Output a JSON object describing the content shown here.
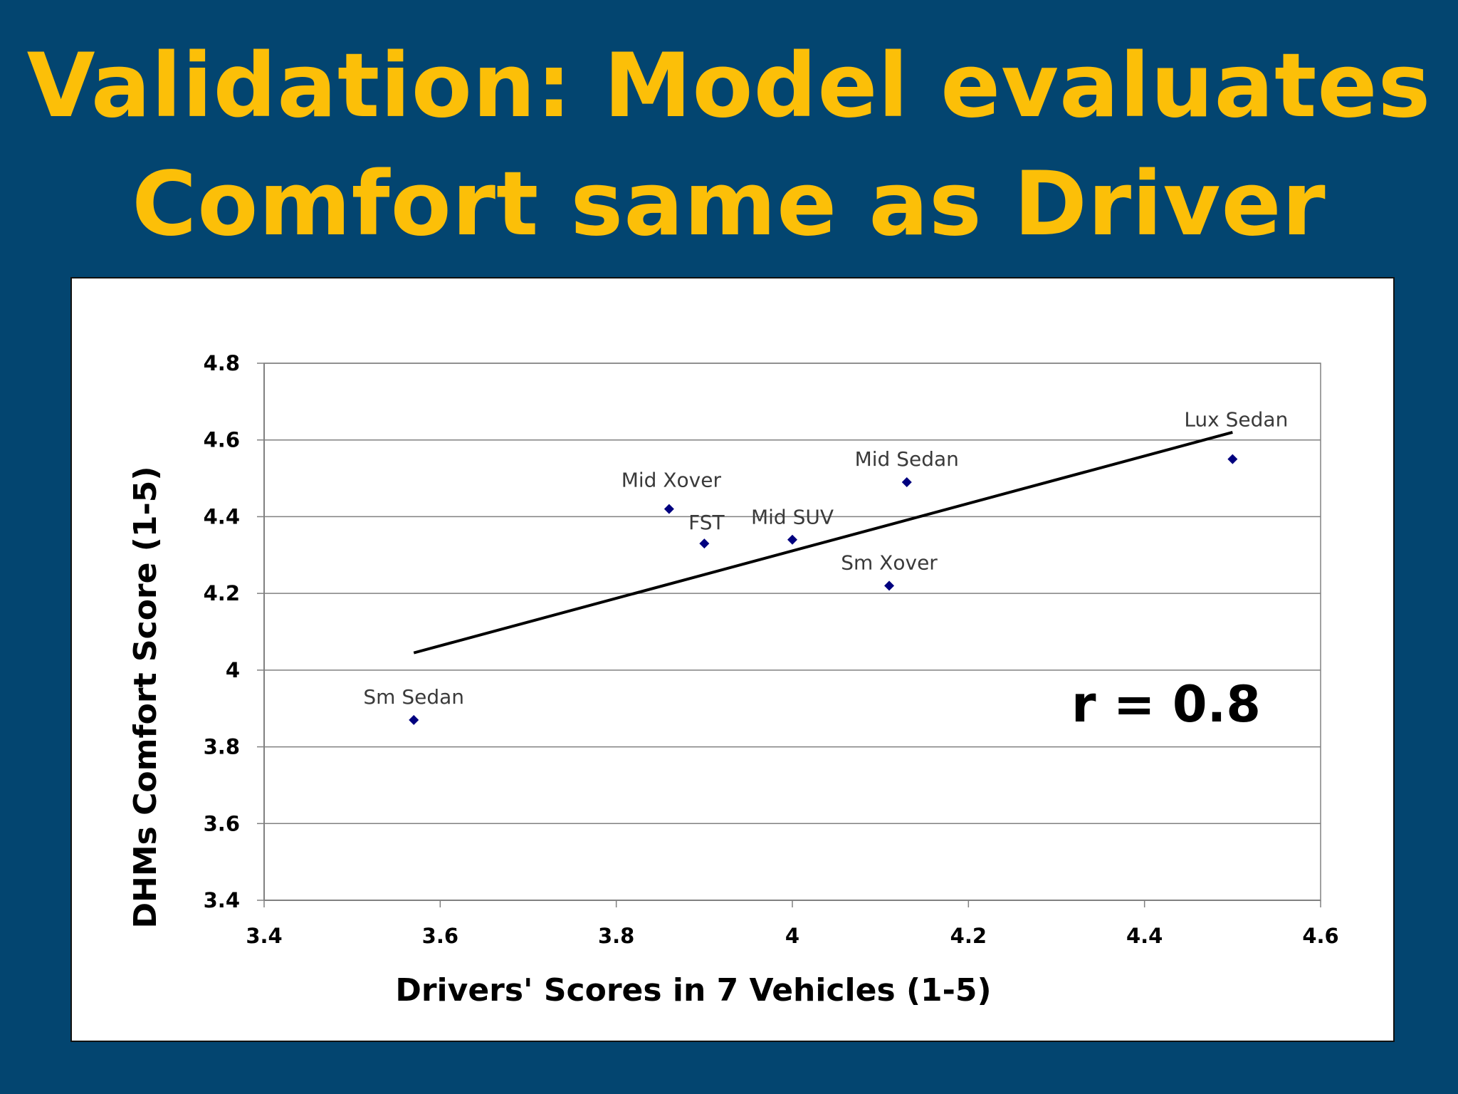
{
  "slide": {
    "title_line1": "Validation: Model evaluates",
    "title_line2": "Comfort same as Driver"
  },
  "colors": {
    "background": "#034570",
    "title": "#fcbf08",
    "marker": "#00007f",
    "gridline": "#808080",
    "trendline": "#000000"
  },
  "chart_data": {
    "type": "scatter",
    "title": "",
    "xlabel": "Drivers' Scores in 7 Vehicles (1-5)",
    "ylabel": "DHMs Comfort  Score (1-5)",
    "xlim": [
      3.4,
      4.6
    ],
    "ylim": [
      3.4,
      4.8
    ],
    "x_ticks": [
      "3.4",
      "3.6",
      "3.8",
      "4",
      "4.2",
      "4.4",
      "4.6"
    ],
    "y_ticks": [
      "3.4",
      "3.6",
      "3.8",
      "4",
      "4.2",
      "4.4",
      "4.6",
      "4.8"
    ],
    "grid": "horizontal",
    "legend": "none",
    "marker": "diamond",
    "points": [
      {
        "label": "Sm Sedan",
        "x": 3.57,
        "y": 3.87
      },
      {
        "label": "Mid Xover",
        "x": 3.86,
        "y": 4.42
      },
      {
        "label": "FST",
        "x": 3.9,
        "y": 4.33
      },
      {
        "label": "Mid SUV",
        "x": 4.0,
        "y": 4.34
      },
      {
        "label": "Sm Xover",
        "x": 4.11,
        "y": 4.22
      },
      {
        "label": "Mid Sedan",
        "x": 4.13,
        "y": 4.49
      },
      {
        "label": "Lux Sedan",
        "x": 4.5,
        "y": 4.55
      }
    ],
    "trendline": {
      "x": [
        3.57,
        4.5
      ],
      "y": [
        4.045,
        4.62
      ]
    },
    "annotation": "r = 0.8"
  }
}
